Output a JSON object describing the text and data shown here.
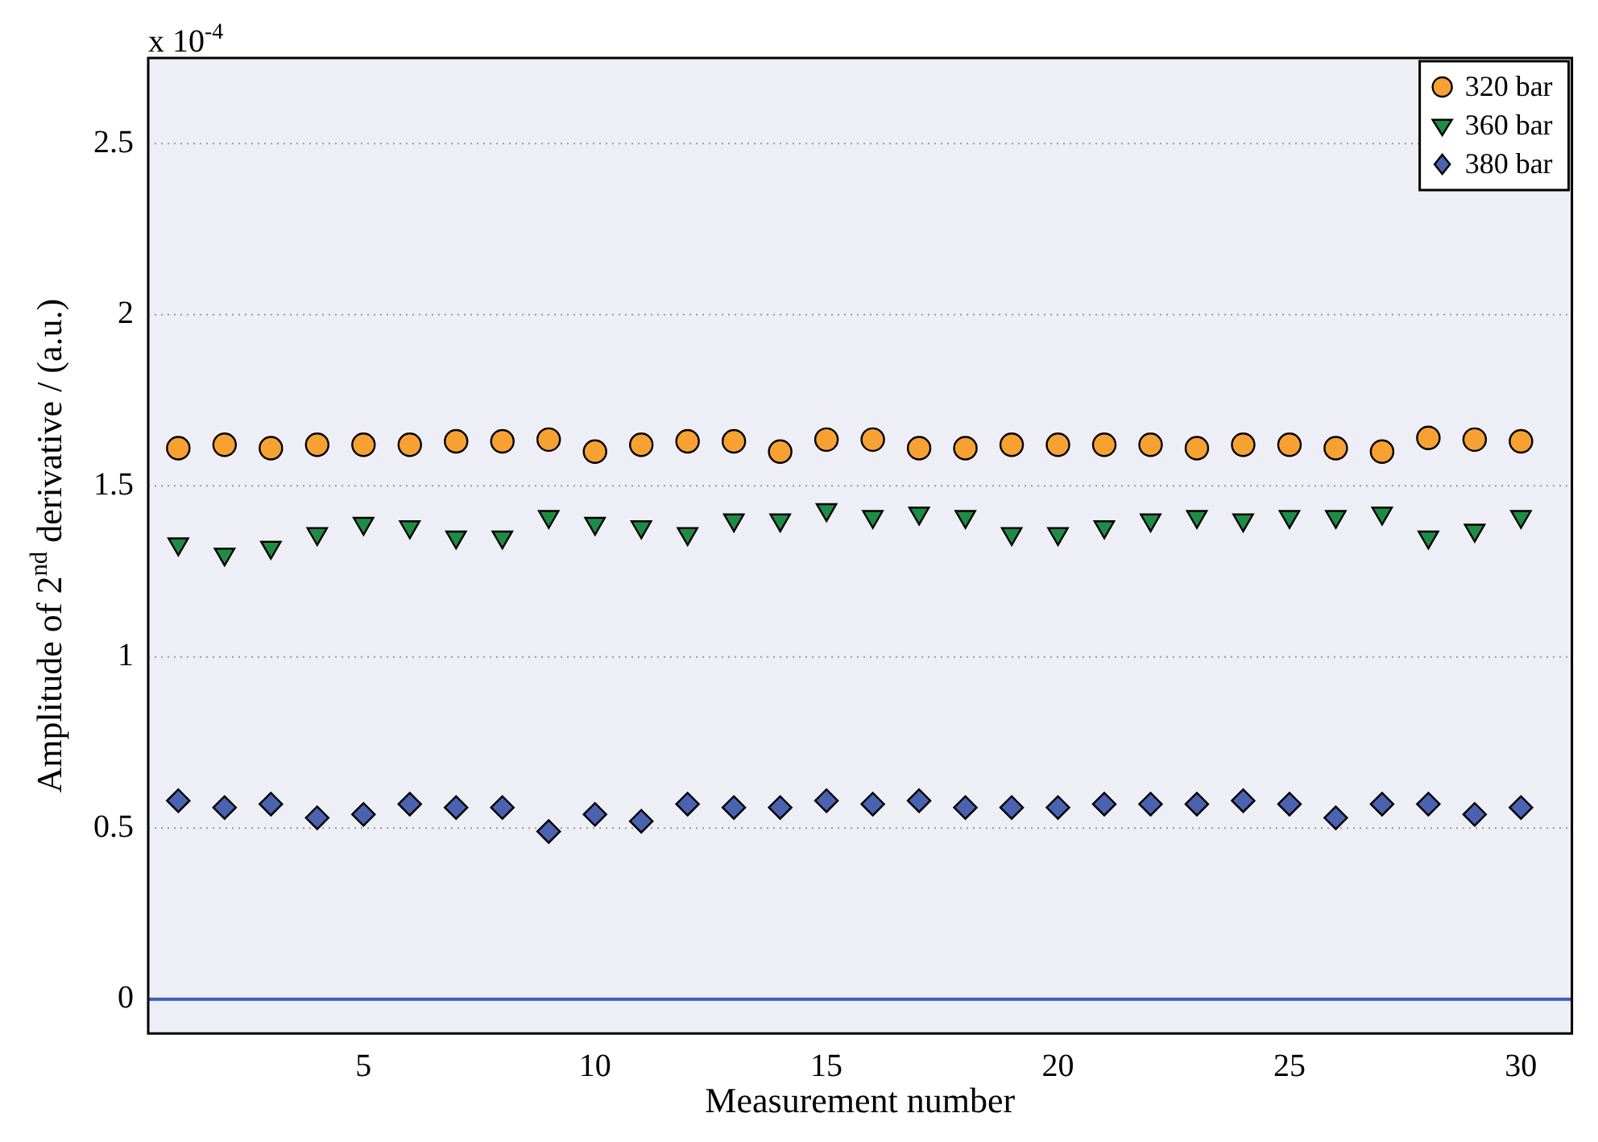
{
  "chart_data": {
    "type": "scatter",
    "xlabel": "Measurement number",
    "ylabel": "Amplitude of 2$^{nd}$ derivative / (a.u.)",
    "annotations": [
      "x 10$^{-4}$"
    ],
    "x": [
      1,
      2,
      3,
      4,
      5,
      6,
      7,
      8,
      9,
      10,
      11,
      12,
      13,
      14,
      15,
      16,
      17,
      18,
      19,
      20,
      21,
      22,
      23,
      24,
      25,
      26,
      27,
      28,
      29,
      30
    ],
    "xlim": [
      0.35,
      31.1
    ],
    "xticks": [
      5,
      10,
      15,
      20,
      25,
      30
    ],
    "ylim": [
      -0.1,
      2.75
    ],
    "yticks": [
      0,
      0.5,
      1,
      1.5,
      2,
      2.5
    ],
    "grid": "y",
    "legend": "top right",
    "series": [
      {
        "name": "320 bar",
        "color": "#f7a133",
        "marker": "circle",
        "values": [
          1.61,
          1.62,
          1.61,
          1.62,
          1.62,
          1.62,
          1.63,
          1.63,
          1.635,
          1.6,
          1.62,
          1.63,
          1.63,
          1.6,
          1.635,
          1.635,
          1.61,
          1.61,
          1.62,
          1.62,
          1.62,
          1.62,
          1.61,
          1.62,
          1.62,
          1.61,
          1.6,
          1.64,
          1.635,
          1.63
        ]
      },
      {
        "name": "360 bar",
        "color": "#1e8c46",
        "marker": "triangle",
        "values": [
          1.33,
          1.3,
          1.32,
          1.36,
          1.39,
          1.38,
          1.35,
          1.35,
          1.41,
          1.39,
          1.38,
          1.36,
          1.4,
          1.4,
          1.43,
          1.41,
          1.42,
          1.41,
          1.36,
          1.36,
          1.38,
          1.4,
          1.41,
          1.4,
          1.41,
          1.41,
          1.42,
          1.35,
          1.37,
          1.41
        ]
      },
      {
        "name": "380 bar",
        "color": "#4a62b0",
        "marker": "diamond",
        "values": [
          0.58,
          0.56,
          0.57,
          0.53,
          0.54,
          0.57,
          0.56,
          0.56,
          0.49,
          0.54,
          0.52,
          0.57,
          0.56,
          0.56,
          0.58,
          0.57,
          0.58,
          0.56,
          0.56,
          0.56,
          0.57,
          0.57,
          0.57,
          0.58,
          0.57,
          0.53,
          0.57,
          0.57,
          0.54,
          0.56
        ]
      }
    ],
    "ref_lines": [
      {
        "axis": "y",
        "value": 0,
        "color": "#3a5fb5"
      }
    ]
  }
}
